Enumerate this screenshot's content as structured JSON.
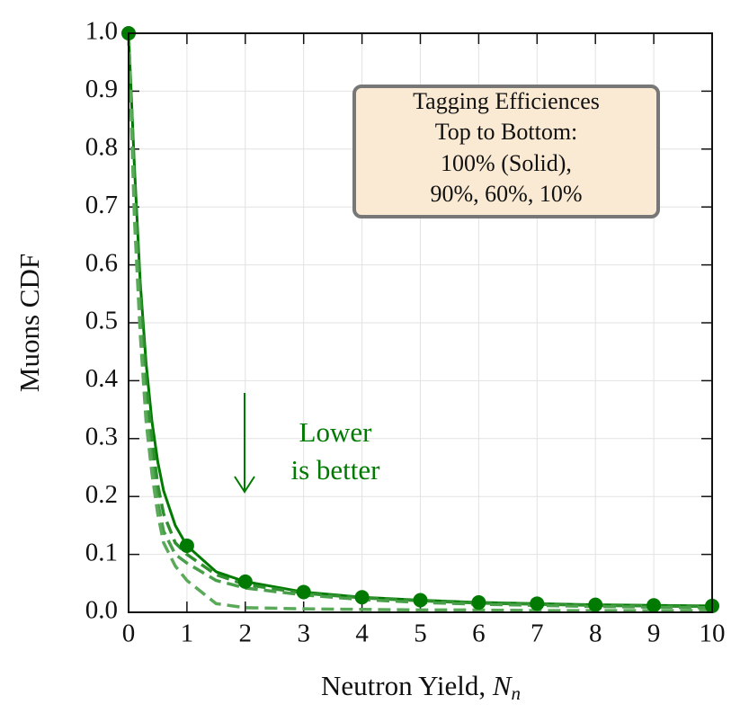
{
  "chart_data": {
    "type": "line",
    "y_label": "Muons CDF",
    "x_label": [
      "Neutron Yield,",
      "N",
      "n"
    ],
    "x": [
      0,
      0.1,
      0.2,
      0.3,
      0.4,
      0.5,
      0.6,
      0.8,
      1,
      1.5,
      2,
      3,
      4,
      5,
      6,
      7,
      8,
      9,
      10
    ],
    "series": [
      {
        "color": "#007a00",
        "style": "solid",
        "values": [
          1.0,
          0.77,
          0.57,
          0.43,
          0.33,
          0.26,
          0.21,
          0.15,
          0.115,
          0.07,
          0.053,
          0.035,
          0.026,
          0.021,
          0.017,
          0.015,
          0.013,
          0.012,
          0.011
        ]
      },
      {
        "color": "#2e912e",
        "style": "dashed",
        "values": [
          1.0,
          0.75,
          0.55,
          0.4,
          0.3,
          0.22,
          0.17,
          0.12,
          0.1,
          0.065,
          0.048,
          0.033,
          0.025,
          0.02,
          0.016,
          0.014,
          0.012,
          0.011,
          0.01
        ]
      },
      {
        "color": "#4aa04a",
        "style": "dashed",
        "values": [
          1.0,
          0.7,
          0.5,
          0.35,
          0.26,
          0.19,
          0.14,
          0.1,
          0.085,
          0.055,
          0.042,
          0.03,
          0.022,
          0.017,
          0.014,
          0.012,
          0.01,
          0.009,
          0.008
        ]
      },
      {
        "color": "#5aaa5a",
        "style": "dashed",
        "values": [
          1.0,
          0.68,
          0.48,
          0.33,
          0.24,
          0.17,
          0.12,
          0.08,
          0.055,
          0.015,
          0.008,
          0.006,
          0.005,
          0.004,
          0.004,
          0.003,
          0.003,
          0.003,
          0.003
        ]
      }
    ],
    "markers": {
      "color": "#007a00",
      "x": [
        0,
        1,
        2,
        3,
        4,
        5,
        6,
        7,
        8,
        9,
        10
      ],
      "values": [
        1.0,
        0.115,
        0.053,
        0.035,
        0.026,
        0.021,
        0.017,
        0.015,
        0.013,
        0.012,
        0.011
      ]
    },
    "xlim": [
      0,
      10
    ],
    "ylim": [
      0,
      1
    ],
    "xticks": [
      0,
      1,
      2,
      3,
      4,
      5,
      6,
      7,
      8,
      9,
      10
    ],
    "yticks": [
      {
        "value": 0,
        "label": "0.0"
      },
      0.1,
      0.2,
      0.3,
      0.4,
      0.5,
      0.6,
      0.7,
      0.8,
      0.9,
      {
        "value": 1,
        "label": "1.0"
      }
    ],
    "grid": true,
    "legend_box": [
      "Tagging Efficiences",
      "Top to Bottom:",
      "100% (Solid),",
      "90%, 60%, 10%"
    ],
    "annotation": [
      "Lower",
      "is better"
    ],
    "annotation_color": "#007a00"
  }
}
